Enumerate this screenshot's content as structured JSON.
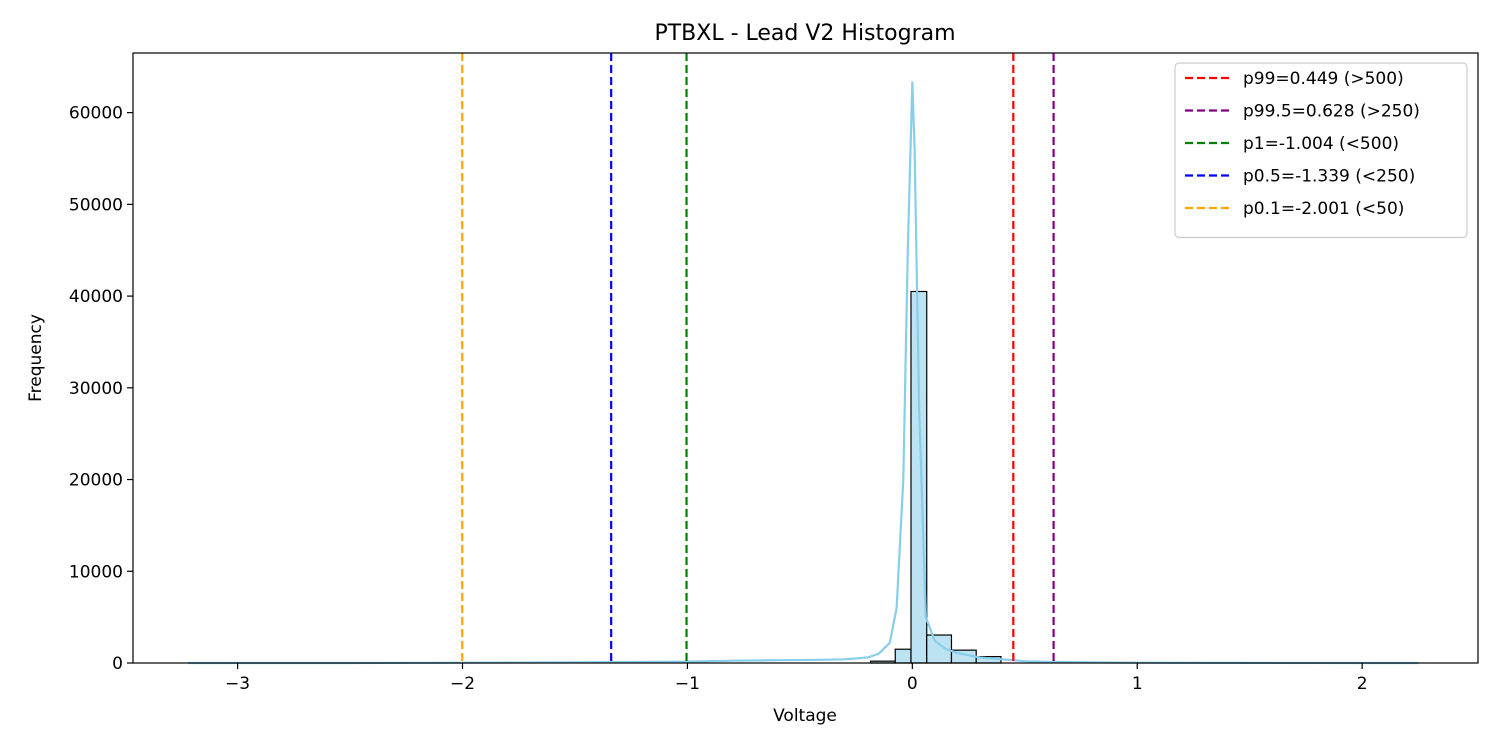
{
  "chart_data": {
    "type": "bar",
    "title": "PTBXL - Lead V2 Histogram",
    "xlabel": "Voltage",
    "ylabel": "Frequency",
    "xlim": [
      -3.465,
      2.515
    ],
    "ylim": [
      0,
      66500
    ],
    "x_ticks": [
      -3,
      -2,
      -1,
      0,
      1,
      2
    ],
    "x_tick_labels": [
      "−3",
      "−2",
      "−1",
      "0",
      "1",
      "2"
    ],
    "y_ticks": [
      0,
      10000,
      20000,
      30000,
      40000,
      50000,
      60000
    ],
    "y_tick_labels": [
      "0",
      "10000",
      "20000",
      "30000",
      "40000",
      "50000",
      "60000"
    ],
    "grid": false,
    "bar_color": "#bde3f2",
    "bar_edge_color": "#000000",
    "kde_color": "#87ceeb",
    "bins": [
      {
        "x0": -0.186,
        "x1": -0.076,
        "count": 200
      },
      {
        "x0": -0.076,
        "x1": -0.006,
        "count": 1500
      },
      {
        "x0": -0.006,
        "x1": 0.064,
        "count": 40500
      },
      {
        "x0": 0.064,
        "x1": 0.174,
        "count": 3050
      },
      {
        "x0": 0.174,
        "x1": 0.284,
        "count": 1400
      },
      {
        "x0": 0.284,
        "x1": 0.394,
        "count": 700
      }
    ],
    "kde": {
      "x": [
        -3.22,
        -2.5,
        -2.0,
        -1.5,
        -1.0,
        -0.8,
        -0.6,
        -0.4,
        -0.3,
        -0.2,
        -0.15,
        -0.1,
        -0.07,
        -0.04,
        -0.02,
        0.0,
        0.01,
        0.03,
        0.06,
        0.1,
        0.15,
        0.2,
        0.3,
        0.4,
        0.5,
        0.6,
        0.8,
        1.0,
        1.5,
        2.0,
        2.25
      ],
      "y": [
        0,
        0,
        30,
        60,
        150,
        250,
        300,
        350,
        400,
        600,
        1000,
        2200,
        6000,
        20000,
        45000,
        63300,
        56000,
        28000,
        5000,
        2400,
        1500,
        1100,
        600,
        400,
        200,
        120,
        60,
        30,
        10,
        0,
        0
      ]
    },
    "vlines": [
      {
        "x": 0.449,
        "color": "#ff0000",
        "label": "p99=0.449 (>500)"
      },
      {
        "x": 0.628,
        "color": "#800080",
        "label": "p99.5=0.628 (>250)"
      },
      {
        "x": -1.004,
        "color": "#008000",
        "label": "p1=-1.004 (<500)"
      },
      {
        "x": -1.339,
        "color": "#0000ff",
        "label": "p0.5=-1.339 (<250)"
      },
      {
        "x": -2.001,
        "color": "#ffa500",
        "label": "p0.1=-2.001 (<50)"
      }
    ],
    "legend_position": "top-right"
  }
}
